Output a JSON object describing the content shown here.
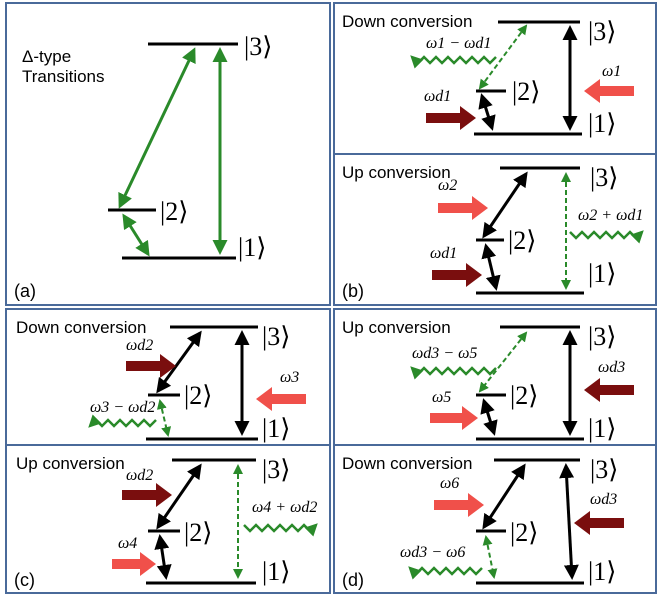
{
  "panel_labels": {
    "a": "(a)",
    "b": "(b)",
    "c": "(c)",
    "d": "(d)"
  },
  "kets": {
    "k1": "|1⟩",
    "k2": "|2⟩",
    "k3": "|3⟩"
  },
  "panel_a": {
    "title_line1": "Δ-type",
    "title_line2": "Transitions"
  },
  "panel_b_top": {
    "title": "Down conversion",
    "signal": "ω1 − ωd1",
    "pump": "ω1",
    "drive": "ωd1"
  },
  "panel_b_bottom": {
    "title": "Up conversion",
    "pump": "ω2",
    "drive": "ωd1",
    "signal": "ω2 + ωd1"
  },
  "panel_c_top": {
    "title": "Down conversion",
    "drive": "ωd2",
    "pump": "ω3",
    "signal": "ω3 − ωd2"
  },
  "panel_c_bottom": {
    "title": "Up conversion",
    "drive": "ωd2",
    "pump": "ω4",
    "signal": "ω4 + ωd2"
  },
  "panel_d_top": {
    "title": "Up conversion",
    "signal": "ωd3 − ω5",
    "drive": "ωd3",
    "pump": "ω5"
  },
  "panel_d_bottom": {
    "title": "Down conversion",
    "pump": "ω6",
    "drive": "ωd3",
    "signal": "ωd3 − ω6"
  },
  "colors": {
    "border": "#4a6a9a",
    "green": "#2a8a2a",
    "red": "#f0504a",
    "darkred": "#7a0e0e",
    "black": "#000000"
  }
}
